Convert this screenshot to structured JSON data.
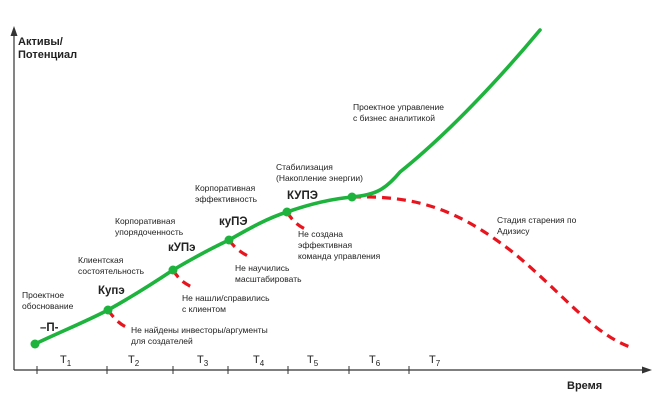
{
  "axes": {
    "y_label_line1": "Активы/",
    "y_label_line2": "Потенциал",
    "x_label": "Время"
  },
  "periods": [
    {
      "main": "T",
      "sub": "1"
    },
    {
      "main": "T",
      "sub": "2"
    },
    {
      "main": "T",
      "sub": "3"
    },
    {
      "main": "T",
      "sub": "4"
    },
    {
      "main": "T",
      "sub": "5"
    },
    {
      "main": "T",
      "sub": "6"
    },
    {
      "main": "T",
      "sub": "7"
    }
  ],
  "stages": {
    "s1": {
      "label1": "Проектное",
      "label2": "обоснование",
      "code": "–П-"
    },
    "s2": {
      "label1": "Клиентская",
      "label2": "состоятельность",
      "code": "Купэ"
    },
    "s3": {
      "label1": "Корпоративная",
      "label2": "упорядоченность",
      "code": "кУПэ"
    },
    "s4": {
      "label1": "Корпоративная",
      "label2": "эффективность",
      "code": "куПЭ"
    },
    "s5": {
      "label1": "Стабилизация",
      "label2": "(Накопление энергии)",
      "code": "КУПЭ"
    },
    "top": {
      "label1": "Проектное управление",
      "label2": "с бизнес аналитикой"
    }
  },
  "failures": {
    "f1": {
      "line1": "Не найдены инвесторы/аргументы",
      "line2": "для создателей"
    },
    "f2": {
      "line1": "Не нашли/справились",
      "line2": "с клиентом"
    },
    "f3": {
      "line1": "Не научились",
      "line2": "масштабировать"
    },
    "f4": {
      "line1": "Не создана",
      "line2": "эффективная",
      "line3": "команда управления"
    },
    "aging": {
      "line1": "Стадия старения по",
      "line2": "Адизису"
    }
  },
  "colors": {
    "growth": "#1db33c",
    "decline": "#e8141e",
    "axis": "#333333"
  }
}
